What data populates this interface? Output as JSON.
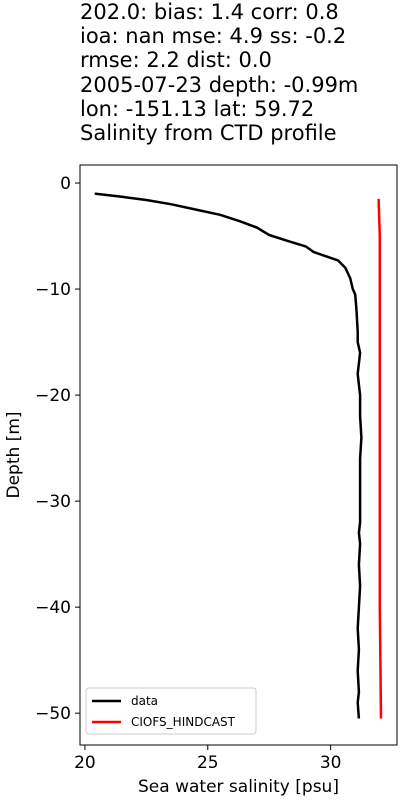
{
  "title_lines": [
    "202.0: bias: 1.4  corr: 0.8",
    "ioa: nan  mse: 4.9  ss: -0.2",
    "rmse: 2.2  dist: 0.0",
    "2005-07-23 depth: -0.99m",
    "lon: -151.13 lat: 59.72",
    "Salinity from CTD profile"
  ],
  "chart_data": {
    "type": "line",
    "xlabel": "Sea water salinity [psu]",
    "ylabel": "Depth [m]",
    "xlim": [
      19.8,
      32.7
    ],
    "ylim": [
      -53.0,
      1.7
    ],
    "xticks": [
      20,
      25,
      30
    ],
    "xtick_labels": [
      "20",
      "25",
      "30"
    ],
    "yticks": [
      0,
      -10,
      -20,
      -30,
      -40,
      -50
    ],
    "ytick_labels": [
      "0",
      "−10",
      "−20",
      "−30",
      "−40",
      "−50"
    ],
    "legend_location": "lower-left",
    "series": [
      {
        "name": "data",
        "color": "#000000",
        "points": [
          [
            20.4,
            -1.0
          ],
          [
            21.5,
            -1.3
          ],
          [
            22.5,
            -1.6
          ],
          [
            23.5,
            -2.0
          ],
          [
            24.5,
            -2.5
          ],
          [
            25.5,
            -3.0
          ],
          [
            26.3,
            -3.6
          ],
          [
            27.0,
            -4.2
          ],
          [
            27.5,
            -4.9
          ],
          [
            28.3,
            -5.5
          ],
          [
            29.0,
            -6.0
          ],
          [
            29.3,
            -6.5
          ],
          [
            29.8,
            -6.9
          ],
          [
            30.3,
            -7.3
          ],
          [
            30.6,
            -8.0
          ],
          [
            30.8,
            -9.0
          ],
          [
            30.9,
            -10.0
          ],
          [
            31.0,
            -10.5
          ],
          [
            31.05,
            -12.0
          ],
          [
            31.1,
            -14.0
          ],
          [
            31.1,
            -15.0
          ],
          [
            31.2,
            -16.0
          ],
          [
            31.15,
            -17.0
          ],
          [
            31.1,
            -18.0
          ],
          [
            31.15,
            -19.0
          ],
          [
            31.2,
            -20.0
          ],
          [
            31.2,
            -22.0
          ],
          [
            31.25,
            -24.0
          ],
          [
            31.2,
            -26.0
          ],
          [
            31.2,
            -28.0
          ],
          [
            31.2,
            -30.0
          ],
          [
            31.2,
            -32.0
          ],
          [
            31.15,
            -33.0
          ],
          [
            31.2,
            -34.0
          ],
          [
            31.15,
            -36.0
          ],
          [
            31.2,
            -38.0
          ],
          [
            31.15,
            -40.0
          ],
          [
            31.1,
            -42.0
          ],
          [
            31.15,
            -44.0
          ],
          [
            31.1,
            -46.0
          ],
          [
            31.15,
            -48.0
          ],
          [
            31.1,
            -49.0
          ],
          [
            31.15,
            -50.5
          ]
        ]
      },
      {
        "name": "CIOFS_HINDCAST",
        "color": "#ff0000",
        "points": [
          [
            31.95,
            -1.5
          ],
          [
            32.0,
            -5.0
          ],
          [
            32.0,
            -10.0
          ],
          [
            32.0,
            -20.0
          ],
          [
            32.0,
            -30.0
          ],
          [
            32.0,
            -40.0
          ],
          [
            32.05,
            -50.5
          ]
        ]
      }
    ]
  }
}
